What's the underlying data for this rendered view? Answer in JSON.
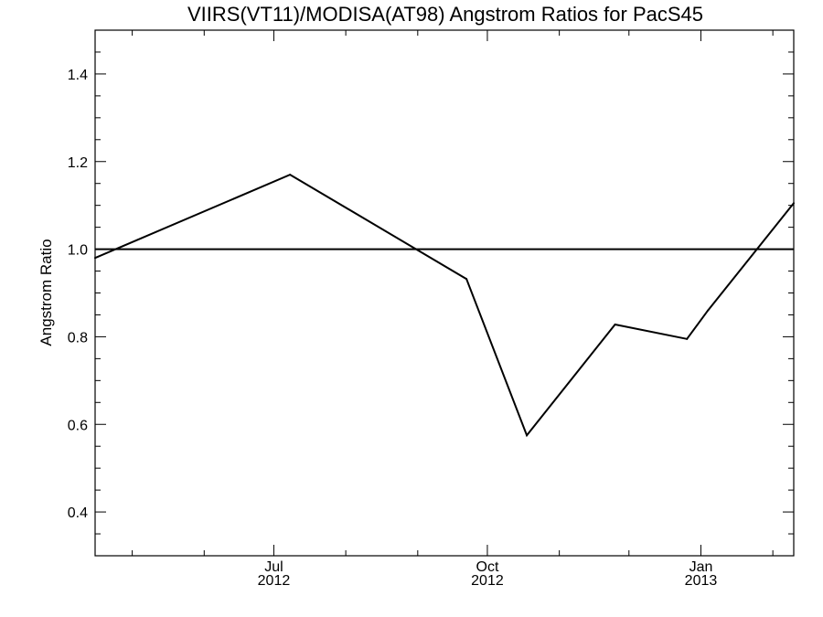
{
  "chart_data": {
    "type": "line",
    "title": "VIIRS(VT11)/MODISA(AT98)  Angstrom Ratios for PacS45",
    "xlabel": "",
    "ylabel": "Angstrom Ratio",
    "xlim": [
      "2012-04-15",
      "2013-02-10"
    ],
    "ylim": [
      0.3,
      1.5
    ],
    "y_ticks": [
      "0.4",
      "0.6",
      "0.8",
      "1.0",
      "1.2",
      "1.4"
    ],
    "y_tick_values": [
      0.4,
      0.6,
      0.8,
      1.0,
      1.2,
      1.4
    ],
    "x_ticks": [
      {
        "date": "2012-07-01",
        "month": "Jul",
        "year": "2012"
      },
      {
        "date": "2012-10-01",
        "month": "Oct",
        "year": "2012"
      },
      {
        "date": "2013-01-01",
        "month": "Jan",
        "year": "2013"
      }
    ],
    "x_minor_ticks": [
      "2012-05-01",
      "2012-06-01",
      "2012-08-01",
      "2012-09-01",
      "2012-11-01",
      "2012-12-01",
      "2013-02-01"
    ],
    "series": [
      {
        "x": [
          "2012-04-15",
          "2012-07-08",
          "2012-09-22",
          "2012-10-18",
          "2012-11-25",
          "2012-12-26",
          "2013-01-04",
          "2013-02-10"
        ],
        "y": [
          0.98,
          1.17,
          0.932,
          0.575,
          0.828,
          0.795,
          0.86,
          1.105
        ]
      }
    ],
    "reference_line": {
      "y": 1.0
    },
    "grid": false
  }
}
